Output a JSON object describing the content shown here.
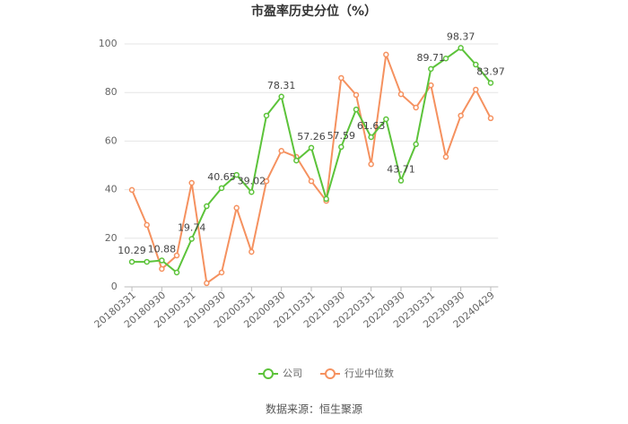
{
  "chart_data": {
    "type": "line",
    "title": "市盈率历史分位（%）",
    "source": "数据来源：恒生聚源",
    "categories": [
      "20180331",
      null,
      "20180930",
      null,
      "20190331",
      null,
      "20190930",
      null,
      "20200331",
      null,
      "20200930",
      null,
      "20210331",
      null,
      "20210930",
      null,
      "20220331",
      null,
      "20220930",
      null,
      "20230331",
      null,
      "20230930",
      null,
      "20240429"
    ],
    "series": [
      {
        "name": "公司",
        "color": "#5cc33a",
        "values": [
          10.29,
          10.3,
          10.88,
          5.9,
          19.74,
          33.2,
          40.65,
          46.1,
          39.02,
          70.5,
          78.31,
          52,
          57.26,
          36.2,
          57.59,
          73,
          61.63,
          69,
          43.71,
          58.7,
          89.71,
          94,
          98.37,
          91.5,
          83.97
        ],
        "value_labels": [
          "10.29",
          null,
          "10.88",
          null,
          "19.74",
          null,
          "40.65",
          null,
          "39.02",
          null,
          "78.31",
          null,
          "57.26",
          null,
          "57.59",
          null,
          "61.63",
          null,
          "43.71",
          null,
          "89.71",
          null,
          "98.37",
          null,
          "83.97"
        ]
      },
      {
        "name": "行业中位数",
        "color": "#f5915f",
        "values": [
          39.9,
          25.5,
          7.4,
          12.9,
          42.8,
          1.5,
          5.9,
          32.5,
          14.4,
          43.5,
          56,
          53.5,
          43.5,
          35.4,
          86,
          79,
          50.5,
          95.6,
          79.3,
          73.8,
          83,
          53.5,
          70.5,
          81.2,
          69.4
        ]
      }
    ],
    "ylim": [
      0,
      100
    ],
    "yticks": [
      0,
      20,
      40,
      60,
      80,
      100
    ],
    "grid": true,
    "legend": "bottom"
  }
}
